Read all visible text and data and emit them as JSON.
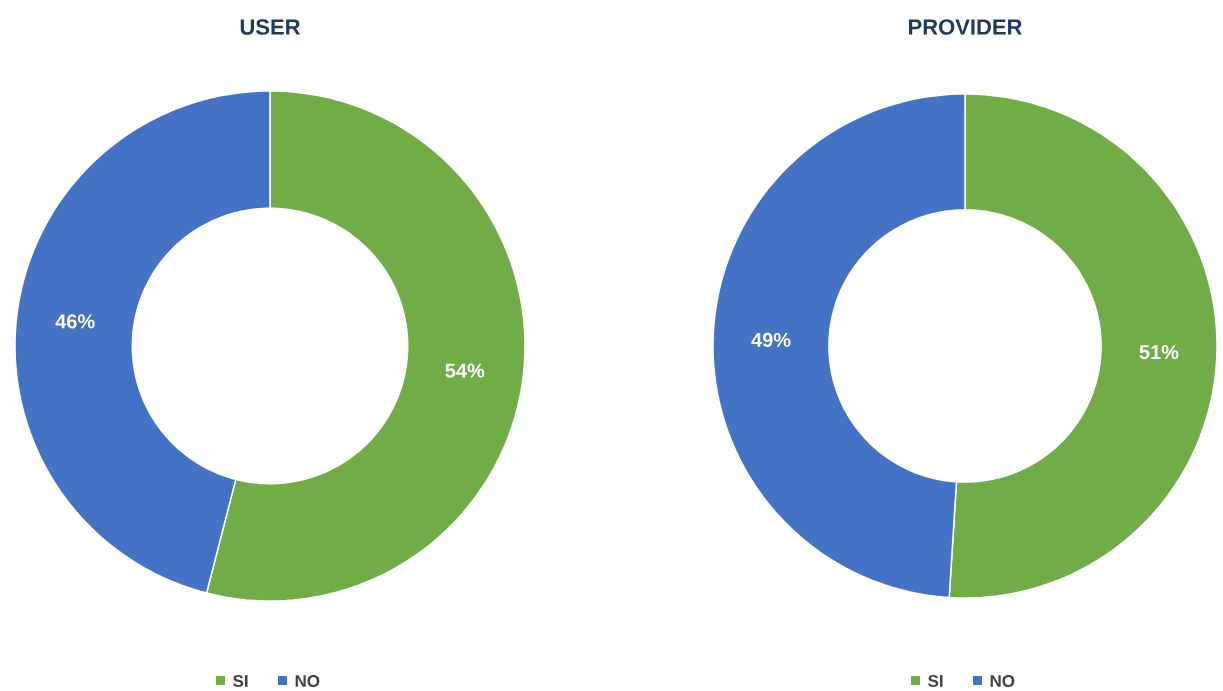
{
  "chart_data": [
    {
      "type": "donut",
      "title": "USER",
      "categories": [
        "SI",
        "NO"
      ],
      "values": [
        54,
        46
      ],
      "colors": [
        "#70ad47",
        "#4472c4"
      ],
      "value_labels": [
        "54%",
        "46%"
      ],
      "legend": "bottom"
    },
    {
      "type": "donut",
      "title": "PROVIDER",
      "categories": [
        "SI",
        "NO"
      ],
      "values": [
        51,
        49
      ],
      "colors": [
        "#70ad47",
        "#4472c4"
      ],
      "value_labels": [
        "51%",
        "49%"
      ],
      "legend": "bottom"
    }
  ]
}
